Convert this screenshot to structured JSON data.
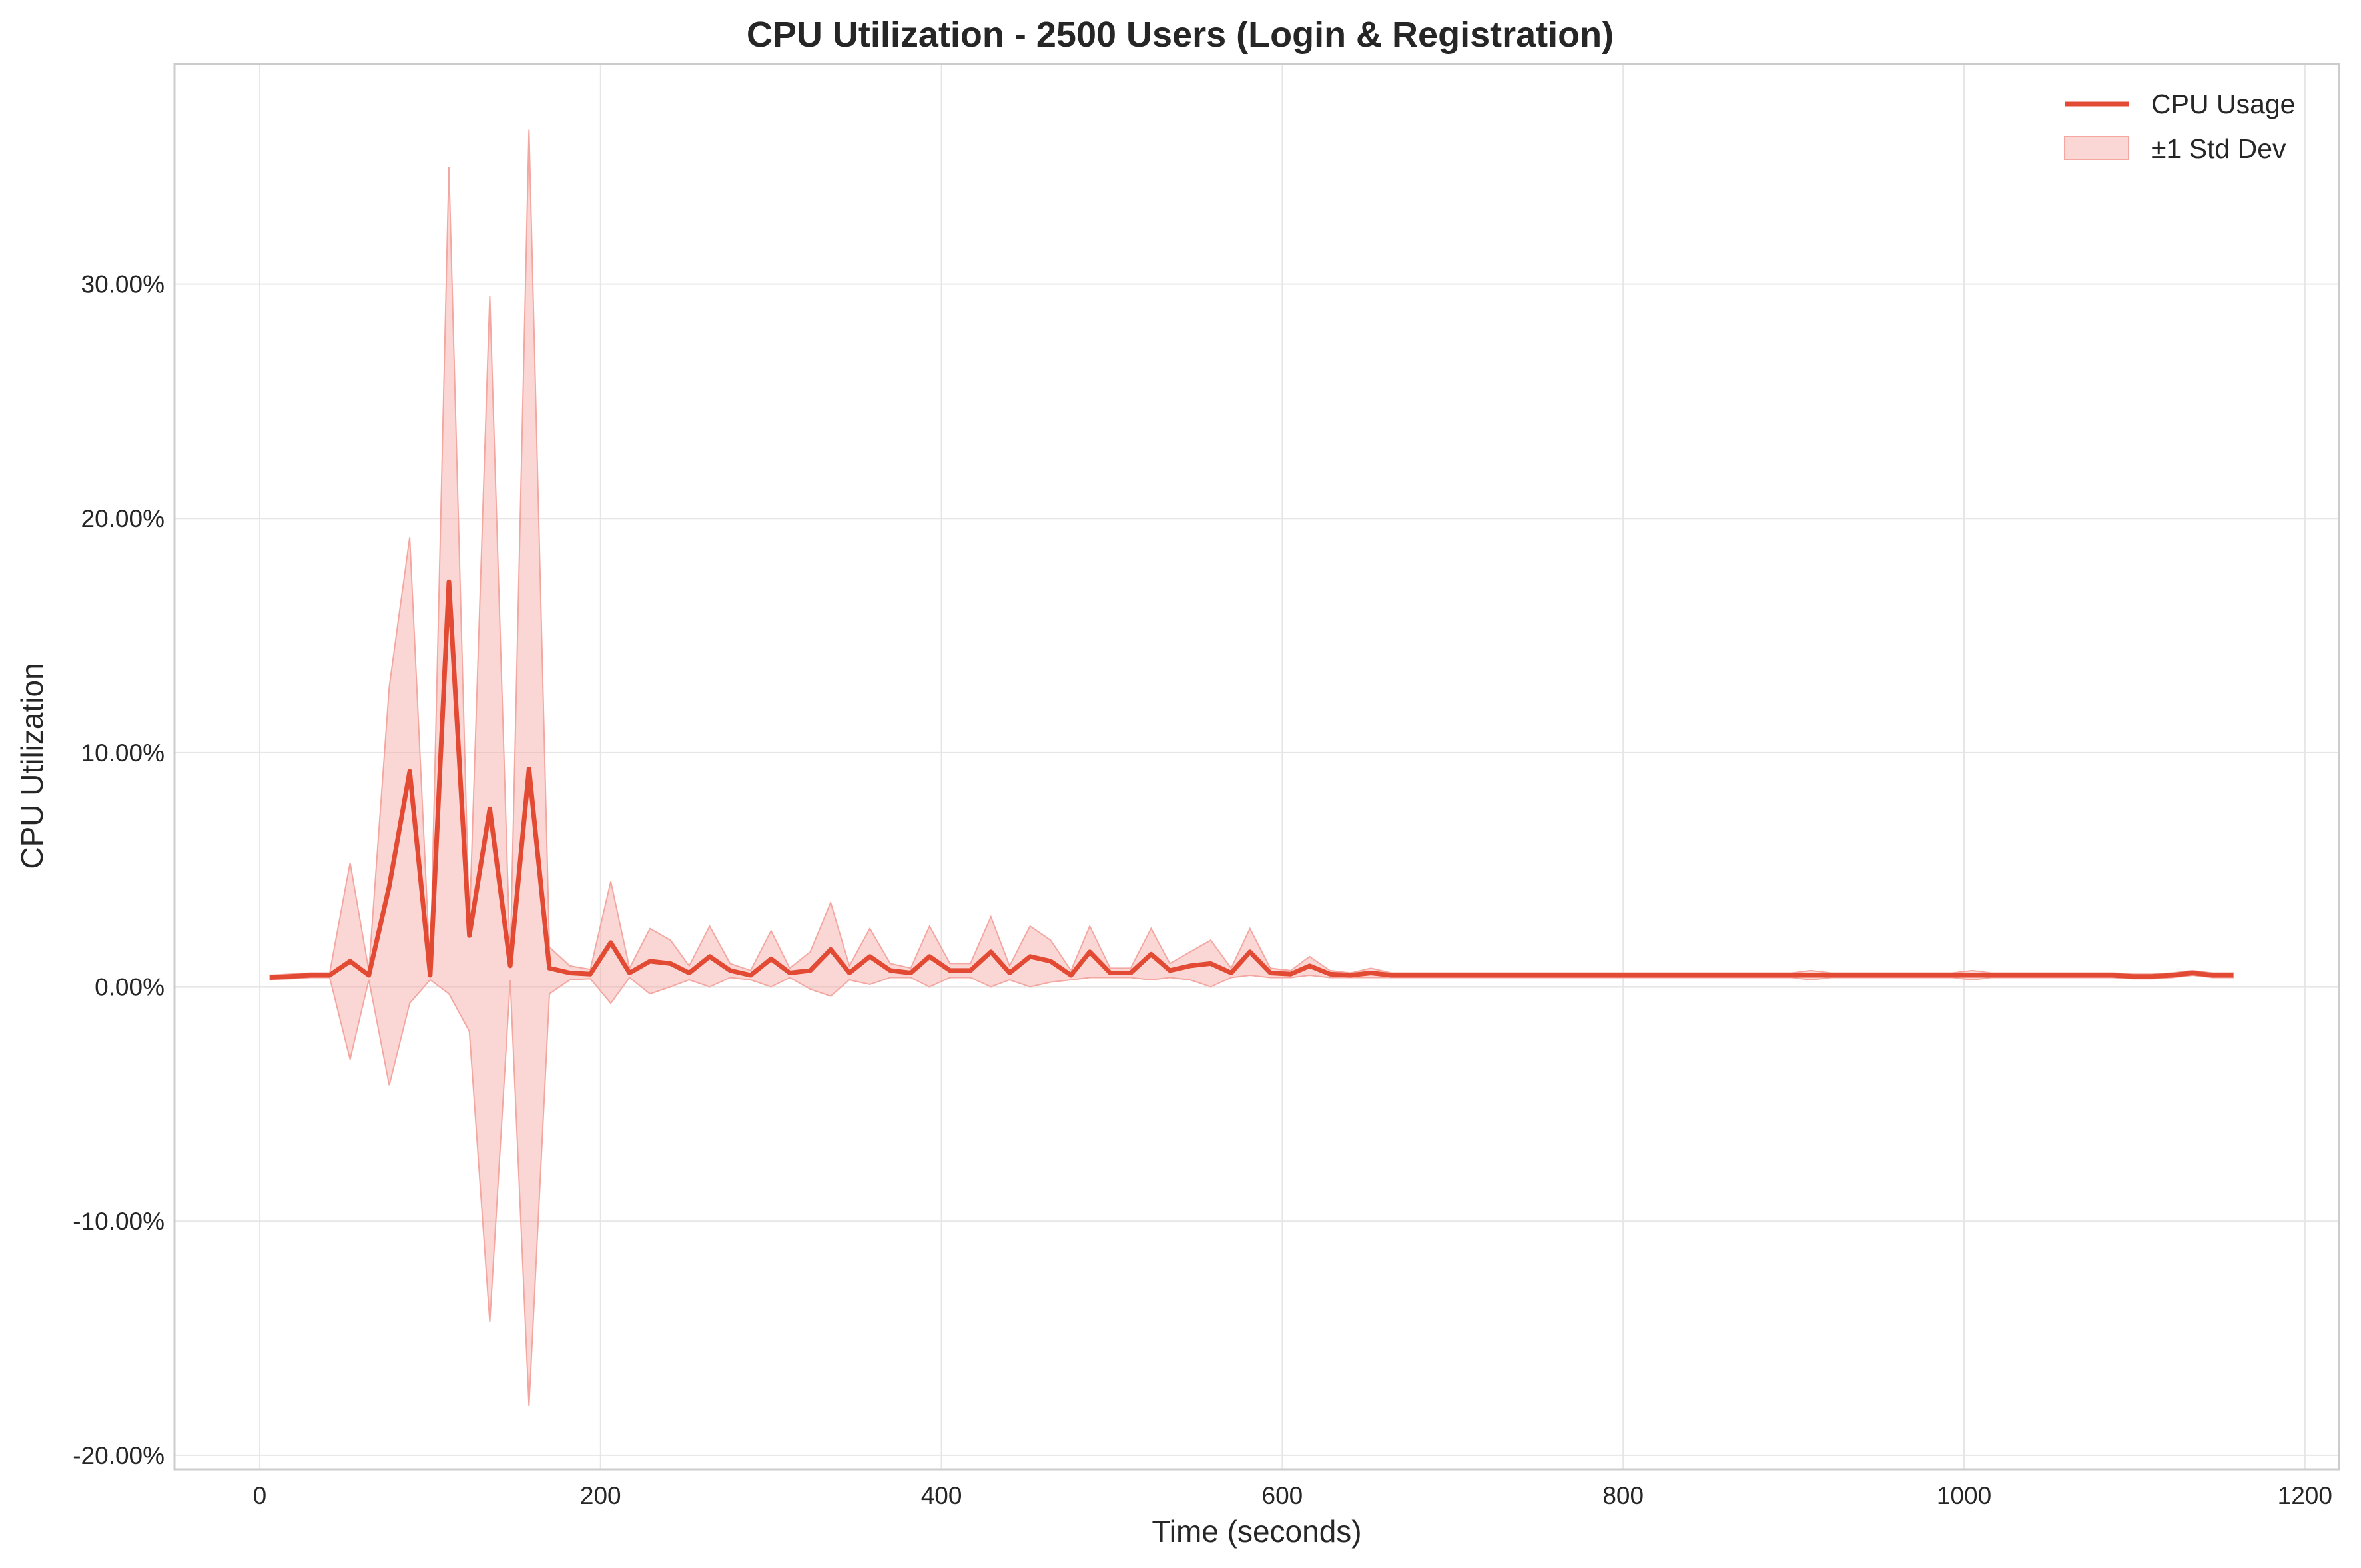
{
  "chart_data": {
    "type": "line",
    "title": "CPU Utilization - 2500 Users (Login & Registration)",
    "xlabel": "Time (seconds)",
    "ylabel": "CPU Utilization",
    "xlim": [
      -50,
      1220
    ],
    "ylim": [
      -20.6,
      39.4
    ],
    "x_ticks": [
      0,
      200,
      400,
      600,
      800,
      1000,
      1200
    ],
    "x_tick_labels": [
      "0",
      "200",
      "400",
      "600",
      "800",
      "1000",
      "1200"
    ],
    "y_ticks": [
      -20,
      -10,
      0,
      10,
      20,
      30
    ],
    "y_tick_labels": [
      "-20.00%",
      "-10.00%",
      "0.00%",
      "10.00%",
      "20.00%",
      "30.00%"
    ],
    "grid": true,
    "legend_position": "top-right",
    "colors": {
      "line": "#e34a33",
      "band": "#f4a6a0",
      "grid": "#e6e6e6",
      "frame": "#cccccc"
    },
    "series": [
      {
        "name": "CPU Usage",
        "x": [
          6,
          18,
          30,
          41,
          53,
          64,
          76,
          88,
          100,
          111,
          123,
          135,
          147,
          158,
          170,
          182,
          194,
          206,
          217,
          229,
          241,
          252,
          264,
          276,
          288,
          300,
          311,
          323,
          335,
          346,
          358,
          370,
          382,
          393,
          405,
          417,
          429,
          440,
          452,
          464,
          476,
          487,
          499,
          511,
          523,
          534,
          546,
          558,
          570,
          581,
          593,
          605,
          616,
          628,
          640,
          652,
          664,
          675,
          687,
          699,
          711,
          722,
          734,
          746,
          758,
          769,
          781,
          793,
          805,
          816,
          828,
          840,
          852,
          863,
          875,
          887,
          899,
          910,
          922,
          934,
          946,
          958,
          969,
          981,
          993,
          1005,
          1016,
          1028,
          1040,
          1052,
          1063,
          1075,
          1087,
          1099,
          1110,
          1122,
          1134,
          1146,
          1158
        ],
        "values": [
          0.4,
          0.45,
          0.5,
          0.5,
          1.1,
          0.5,
          4.3,
          9.2,
          0.5,
          17.3,
          2.2,
          7.6,
          0.9,
          9.3,
          0.8,
          0.6,
          0.55,
          1.9,
          0.6,
          1.1,
          1.0,
          0.6,
          1.3,
          0.7,
          0.5,
          1.2,
          0.6,
          0.7,
          1.6,
          0.6,
          1.3,
          0.7,
          0.6,
          1.3,
          0.7,
          0.7,
          1.5,
          0.6,
          1.3,
          1.1,
          0.5,
          1.5,
          0.6,
          0.6,
          1.4,
          0.7,
          0.9,
          1.0,
          0.6,
          1.5,
          0.6,
          0.55,
          0.9,
          0.55,
          0.5,
          0.6,
          0.5,
          0.5,
          0.5,
          0.5,
          0.5,
          0.5,
          0.5,
          0.5,
          0.5,
          0.5,
          0.5,
          0.5,
          0.5,
          0.5,
          0.5,
          0.5,
          0.5,
          0.5,
          0.5,
          0.5,
          0.5,
          0.5,
          0.5,
          0.5,
          0.5,
          0.5,
          0.5,
          0.5,
          0.5,
          0.5,
          0.5,
          0.5,
          0.5,
          0.5,
          0.5,
          0.5,
          0.5,
          0.45,
          0.45,
          0.5,
          0.6,
          0.5,
          0.5
        ]
      },
      {
        "name": "±1 Std Dev",
        "x": [
          6,
          18,
          30,
          41,
          53,
          64,
          76,
          88,
          100,
          111,
          123,
          135,
          147,
          158,
          170,
          182,
          194,
          206,
          217,
          229,
          241,
          252,
          264,
          276,
          288,
          300,
          311,
          323,
          335,
          346,
          358,
          370,
          382,
          393,
          405,
          417,
          429,
          440,
          452,
          464,
          476,
          487,
          499,
          511,
          523,
          534,
          546,
          558,
          570,
          581,
          593,
          605,
          616,
          628,
          640,
          652,
          664,
          675,
          687,
          699,
          711,
          722,
          734,
          746,
          758,
          769,
          781,
          793,
          805,
          816,
          828,
          840,
          852,
          863,
          875,
          887,
          899,
          910,
          922,
          934,
          946,
          958,
          969,
          981,
          993,
          1005,
          1016,
          1028,
          1040,
          1052,
          1063,
          1075,
          1087,
          1099,
          1110,
          1122,
          1134,
          1146,
          1158
        ],
        "upper": [
          0.5,
          0.55,
          0.6,
          0.6,
          5.3,
          0.7,
          12.8,
          19.2,
          0.7,
          35.0,
          2.6,
          29.5,
          1.1,
          36.6,
          1.7,
          0.9,
          0.75,
          4.5,
          0.8,
          2.5,
          2.0,
          0.9,
          2.6,
          1.0,
          0.7,
          2.4,
          0.8,
          1.5,
          3.6,
          0.9,
          2.5,
          1.0,
          0.8,
          2.6,
          1.0,
          1.0,
          3.0,
          0.9,
          2.6,
          2.0,
          0.7,
          2.6,
          0.8,
          0.8,
          2.5,
          1.0,
          1.5,
          2.0,
          0.8,
          2.5,
          0.8,
          0.7,
          1.3,
          0.7,
          0.6,
          0.8,
          0.6,
          0.6,
          0.6,
          0.6,
          0.6,
          0.6,
          0.6,
          0.6,
          0.6,
          0.6,
          0.6,
          0.6,
          0.6,
          0.6,
          0.6,
          0.6,
          0.6,
          0.6,
          0.6,
          0.6,
          0.6,
          0.7,
          0.6,
          0.6,
          0.6,
          0.6,
          0.6,
          0.6,
          0.6,
          0.7,
          0.6,
          0.6,
          0.6,
          0.6,
          0.6,
          0.6,
          0.6,
          0.55,
          0.55,
          0.6,
          0.7,
          0.6,
          0.6
        ],
        "lower": [
          0.3,
          0.35,
          0.4,
          0.4,
          -3.1,
          0.3,
          -4.2,
          -0.7,
          0.3,
          -0.3,
          -1.9,
          -14.3,
          0.3,
          -17.9,
          -0.3,
          0.3,
          0.35,
          -0.7,
          0.4,
          -0.3,
          0.0,
          0.3,
          0.0,
          0.4,
          0.3,
          0.0,
          0.4,
          -0.1,
          -0.4,
          0.3,
          0.1,
          0.4,
          0.4,
          0.0,
          0.4,
          0.4,
          0.0,
          0.3,
          0.0,
          0.2,
          0.3,
          0.4,
          0.4,
          0.4,
          0.3,
          0.4,
          0.3,
          0.0,
          0.4,
          0.5,
          0.4,
          0.4,
          0.5,
          0.4,
          0.4,
          0.4,
          0.4,
          0.4,
          0.4,
          0.4,
          0.4,
          0.4,
          0.4,
          0.4,
          0.4,
          0.4,
          0.4,
          0.4,
          0.4,
          0.4,
          0.4,
          0.4,
          0.4,
          0.4,
          0.4,
          0.4,
          0.4,
          0.3,
          0.4,
          0.4,
          0.4,
          0.4,
          0.4,
          0.4,
          0.4,
          0.3,
          0.4,
          0.4,
          0.4,
          0.4,
          0.4,
          0.4,
          0.4,
          0.35,
          0.35,
          0.4,
          0.5,
          0.4,
          0.4
        ]
      }
    ]
  }
}
